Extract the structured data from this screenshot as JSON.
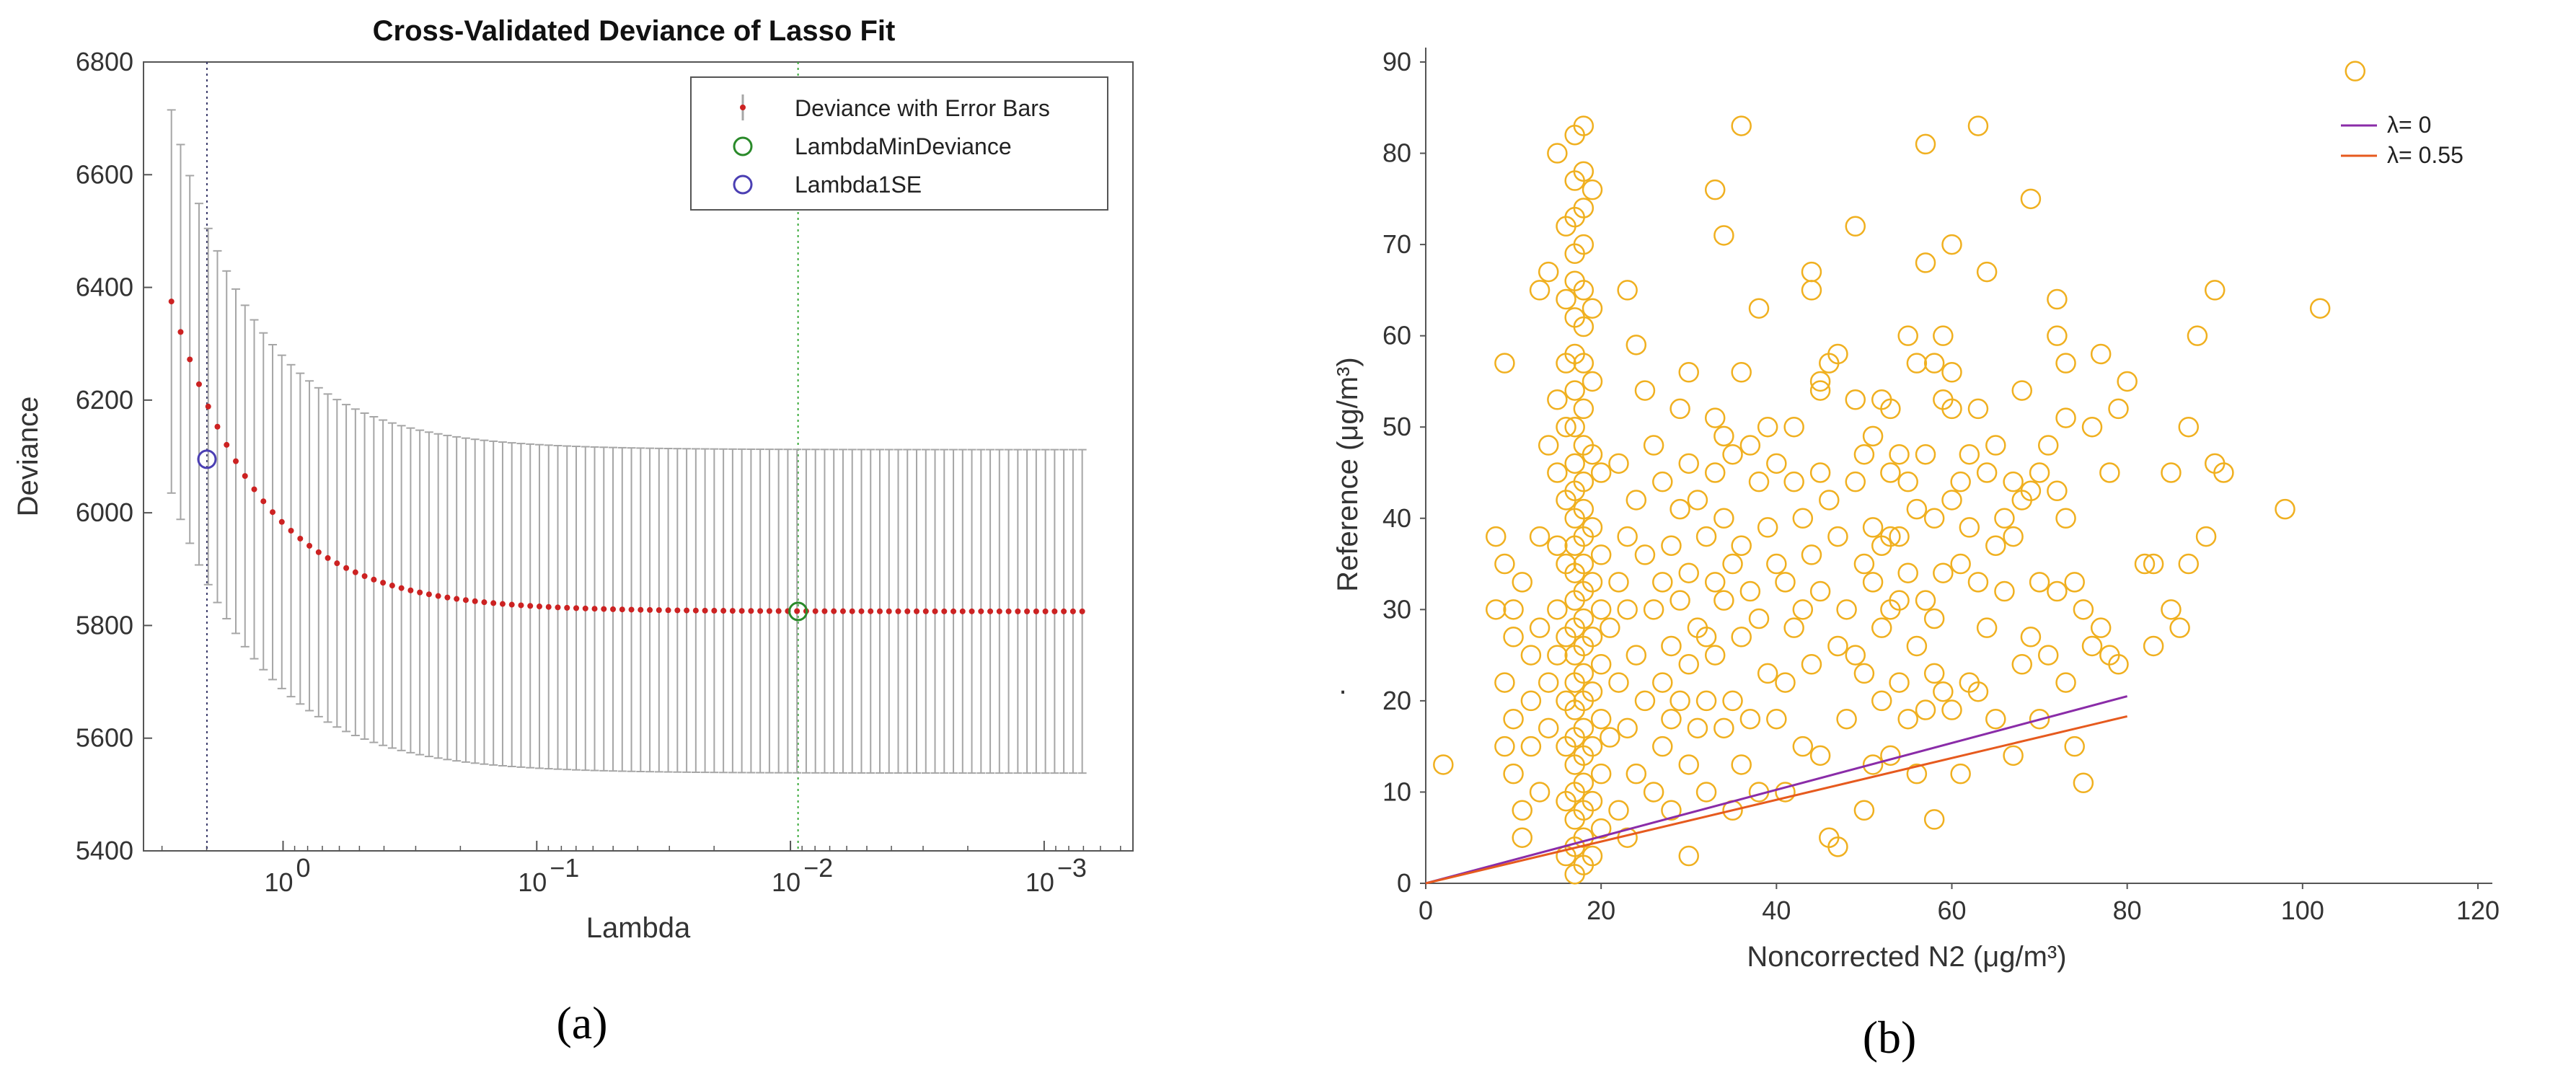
{
  "colors": {
    "errorbar": "#a6a6a6",
    "deviance_marker": "#cc2222",
    "min_marker": "#2a8a2a",
    "se_marker": "#4b3fb3",
    "scatter": "#f0b020",
    "line_lambda0": "#8a2ca8",
    "line_lambda055": "#e65a1e",
    "axis": "#555555"
  },
  "chart_data": [
    {
      "type": "line",
      "panel_label": "(a)",
      "title": "Cross-Validated Deviance of Lasso Fit",
      "xlabel": "Lambda",
      "ylabel": "Deviance",
      "xscale": "log",
      "x_reversed": true,
      "xlim_log10": [
        0.55,
        -3.35
      ],
      "ylim": [
        5400,
        6800
      ],
      "y_ticks": [
        5400,
        5600,
        5800,
        6000,
        6200,
        6400,
        6600,
        6800
      ],
      "x_ticks": [
        {
          "log": 0,
          "base": "10",
          "exp": "0"
        },
        {
          "log": -1,
          "base": "10",
          "exp": "−1"
        },
        {
          "log": -2,
          "base": "10",
          "exp": "−2"
        },
        {
          "log": -3,
          "base": "10",
          "exp": "−3"
        }
      ],
      "series": {
        "name": "Deviance with Error Bars",
        "lambda_log10_start": 0.44,
        "lambda_log10_end": -3.15,
        "n_points": 100,
        "deviance_min": 5825,
        "deviance_start": 6375,
        "decay": 0.115,
        "error_half_width": 287,
        "error_half_width_start": 340
      },
      "lambda_min_deviance": {
        "name": "LambdaMinDeviance",
        "log10_lambda": -2.03,
        "deviance": 5825
      },
      "lambda_1se": {
        "name": "Lambda1SE",
        "log10_lambda": 0.3,
        "deviance": 6095
      },
      "legend": [
        "Deviance with Error Bars",
        "LambdaMinDeviance",
        "Lambda1SE"
      ],
      "legend_position": "top-right"
    },
    {
      "type": "scatter",
      "panel_label": "(b)",
      "xlabel": "Noncorrected N2 (μg/m³)",
      "ylabel": "Reference (μg/m³)",
      "ylabel_extra": ".",
      "xlim": [
        0,
        120
      ],
      "ylim": [
        0,
        90
      ],
      "x_ticks": [
        0,
        20,
        40,
        60,
        80,
        100,
        120
      ],
      "y_ticks": [
        0,
        10,
        20,
        30,
        40,
        50,
        60,
        70,
        80,
        90
      ],
      "lines": [
        {
          "name": "λ= 0",
          "x": [
            0,
            80
          ],
          "y": [
            0,
            20.5
          ]
        },
        {
          "name": "λ= 0.55",
          "x": [
            0,
            80
          ],
          "y": [
            0,
            18.3
          ]
        }
      ],
      "legend_position": "top-right",
      "points": [
        [
          2,
          13
        ],
        [
          8,
          38
        ],
        [
          8,
          30
        ],
        [
          9,
          57
        ],
        [
          9,
          35
        ],
        [
          9,
          22
        ],
        [
          9,
          15
        ],
        [
          10,
          30
        ],
        [
          10,
          27
        ],
        [
          10,
          18
        ],
        [
          10,
          12
        ],
        [
          11,
          33
        ],
        [
          11,
          8
        ],
        [
          11,
          5
        ],
        [
          12,
          25
        ],
        [
          12,
          20
        ],
        [
          12,
          15
        ],
        [
          13,
          65
        ],
        [
          13,
          38
        ],
        [
          13,
          28
        ],
        [
          13,
          10
        ],
        [
          14,
          67
        ],
        [
          14,
          48
        ],
        [
          14,
          22
        ],
        [
          14,
          17
        ],
        [
          15,
          80
        ],
        [
          15,
          53
        ],
        [
          15,
          45
        ],
        [
          15,
          37
        ],
        [
          15,
          30
        ],
        [
          15,
          25
        ],
        [
          16,
          72
        ],
        [
          16,
          64
        ],
        [
          16,
          57
        ],
        [
          16,
          50
        ],
        [
          16,
          42
        ],
        [
          16,
          35
        ],
        [
          16,
          27
        ],
        [
          16,
          20
        ],
        [
          16,
          15
        ],
        [
          16,
          9
        ],
        [
          16,
          3
        ],
        [
          17,
          82
        ],
        [
          17,
          77
        ],
        [
          17,
          73
        ],
        [
          17,
          69
        ],
        [
          17,
          66
        ],
        [
          17,
          62
        ],
        [
          17,
          58
        ],
        [
          17,
          54
        ],
        [
          17,
          50
        ],
        [
          17,
          46
        ],
        [
          17,
          43
        ],
        [
          17,
          40
        ],
        [
          17,
          37
        ],
        [
          17,
          34
        ],
        [
          17,
          31
        ],
        [
          17,
          28
        ],
        [
          17,
          25
        ],
        [
          17,
          22
        ],
        [
          17,
          19
        ],
        [
          17,
          16
        ],
        [
          17,
          13
        ],
        [
          17,
          10
        ],
        [
          17,
          7
        ],
        [
          17,
          4
        ],
        [
          17,
          1
        ],
        [
          18,
          83
        ],
        [
          18,
          78
        ],
        [
          18,
          74
        ],
        [
          18,
          70
        ],
        [
          18,
          65
        ],
        [
          18,
          61
        ],
        [
          18,
          57
        ],
        [
          18,
          52
        ],
        [
          18,
          48
        ],
        [
          18,
          44
        ],
        [
          18,
          41
        ],
        [
          18,
          38
        ],
        [
          18,
          35
        ],
        [
          18,
          32
        ],
        [
          18,
          29
        ],
        [
          18,
          26
        ],
        [
          18,
          23
        ],
        [
          18,
          20
        ],
        [
          18,
          17
        ],
        [
          18,
          14
        ],
        [
          18,
          11
        ],
        [
          18,
          8
        ],
        [
          18,
          5
        ],
        [
          18,
          2
        ],
        [
          19,
          76
        ],
        [
          19,
          63
        ],
        [
          19,
          55
        ],
        [
          19,
          47
        ],
        [
          19,
          39
        ],
        [
          19,
          33
        ],
        [
          19,
          27
        ],
        [
          19,
          21
        ],
        [
          19,
          15
        ],
        [
          19,
          9
        ],
        [
          19,
          3
        ],
        [
          20,
          45
        ],
        [
          20,
          36
        ],
        [
          20,
          30
        ],
        [
          20,
          24
        ],
        [
          20,
          18
        ],
        [
          20,
          12
        ],
        [
          20,
          6
        ],
        [
          21,
          28
        ],
        [
          21,
          16
        ],
        [
          22,
          46
        ],
        [
          22,
          33
        ],
        [
          22,
          22
        ],
        [
          22,
          8
        ],
        [
          23,
          65
        ],
        [
          23,
          38
        ],
        [
          23,
          30
        ],
        [
          23,
          17
        ],
        [
          23,
          5
        ],
        [
          24,
          59
        ],
        [
          24,
          42
        ],
        [
          24,
          25
        ],
        [
          24,
          12
        ],
        [
          25,
          54
        ],
        [
          25,
          36
        ],
        [
          25,
          20
        ],
        [
          26,
          48
        ],
        [
          26,
          30
        ],
        [
          26,
          10
        ],
        [
          27,
          44
        ],
        [
          27,
          33
        ],
        [
          27,
          22
        ],
        [
          27,
          15
        ],
        [
          28,
          37
        ],
        [
          28,
          26
        ],
        [
          28,
          18
        ],
        [
          28,
          8
        ],
        [
          29,
          52
        ],
        [
          29,
          41
        ],
        [
          29,
          31
        ],
        [
          29,
          20
        ],
        [
          30,
          56
        ],
        [
          30,
          46
        ],
        [
          30,
          34
        ],
        [
          30,
          24
        ],
        [
          30,
          13
        ],
        [
          30,
          3
        ],
        [
          31,
          42
        ],
        [
          31,
          28
        ],
        [
          31,
          17
        ],
        [
          32,
          38
        ],
        [
          32,
          27
        ],
        [
          32,
          20
        ],
        [
          32,
          10
        ],
        [
          33,
          76
        ],
        [
          33,
          51
        ],
        [
          33,
          45
        ],
        [
          33,
          33
        ],
        [
          33,
          25
        ],
        [
          34,
          71
        ],
        [
          34,
          49
        ],
        [
          34,
          40
        ],
        [
          34,
          31
        ],
        [
          34,
          17
        ],
        [
          35,
          47
        ],
        [
          35,
          35
        ],
        [
          35,
          20
        ],
        [
          35,
          8
        ],
        [
          36,
          83
        ],
        [
          36,
          56
        ],
        [
          36,
          37
        ],
        [
          36,
          27
        ],
        [
          36,
          13
        ],
        [
          37,
          48
        ],
        [
          37,
          32
        ],
        [
          37,
          18
        ],
        [
          38,
          63
        ],
        [
          38,
          44
        ],
        [
          38,
          29
        ],
        [
          38,
          10
        ],
        [
          39,
          50
        ],
        [
          39,
          39
        ],
        [
          39,
          23
        ],
        [
          40,
          46
        ],
        [
          40,
          35
        ],
        [
          40,
          18
        ],
        [
          41,
          33
        ],
        [
          41,
          22
        ],
        [
          41,
          10
        ],
        [
          42,
          50
        ],
        [
          42,
          44
        ],
        [
          42,
          28
        ],
        [
          43,
          40
        ],
        [
          43,
          30
        ],
        [
          43,
          15
        ],
        [
          44,
          67
        ],
        [
          44,
          65
        ],
        [
          44,
          36
        ],
        [
          44,
          24
        ],
        [
          45,
          55
        ],
        [
          45,
          54
        ],
        [
          45,
          45
        ],
        [
          45,
          32
        ],
        [
          45,
          14
        ],
        [
          46,
          57
        ],
        [
          46,
          42
        ],
        [
          46,
          5
        ],
        [
          47,
          58
        ],
        [
          47,
          38
        ],
        [
          47,
          26
        ],
        [
          47,
          4
        ],
        [
          48,
          30
        ],
        [
          48,
          18
        ],
        [
          49,
          72
        ],
        [
          49,
          53
        ],
        [
          49,
          44
        ],
        [
          49,
          25
        ],
        [
          50,
          47
        ],
        [
          50,
          35
        ],
        [
          50,
          23
        ],
        [
          50,
          8
        ],
        [
          51,
          49
        ],
        [
          51,
          39
        ],
        [
          51,
          33
        ],
        [
          51,
          13
        ],
        [
          52,
          53
        ],
        [
          52,
          37
        ],
        [
          52,
          28
        ],
        [
          52,
          20
        ],
        [
          53,
          52
        ],
        [
          53,
          45
        ],
        [
          53,
          38
        ],
        [
          53,
          30
        ],
        [
          53,
          14
        ],
        [
          54,
          47
        ],
        [
          54,
          38
        ],
        [
          54,
          31
        ],
        [
          54,
          22
        ],
        [
          55,
          60
        ],
        [
          55,
          44
        ],
        [
          55,
          34
        ],
        [
          55,
          18
        ],
        [
          56,
          57
        ],
        [
          56,
          41
        ],
        [
          56,
          26
        ],
        [
          56,
          12
        ],
        [
          57,
          68
        ],
        [
          57,
          81
        ],
        [
          57,
          47
        ],
        [
          57,
          31
        ],
        [
          57,
          19
        ],
        [
          58,
          57
        ],
        [
          58,
          40
        ],
        [
          58,
          29
        ],
        [
          58,
          23
        ],
        [
          58,
          7
        ],
        [
          59,
          60
        ],
        [
          59,
          53
        ],
        [
          59,
          34
        ],
        [
          59,
          21
        ],
        [
          60,
          70
        ],
        [
          60,
          56
        ],
        [
          60,
          52
        ],
        [
          60,
          42
        ],
        [
          60,
          19
        ],
        [
          61,
          44
        ],
        [
          61,
          35
        ],
        [
          61,
          12
        ],
        [
          62,
          47
        ],
        [
          62,
          39
        ],
        [
          62,
          22
        ],
        [
          63,
          83
        ],
        [
          63,
          52
        ],
        [
          63,
          33
        ],
        [
          63,
          21
        ],
        [
          64,
          67
        ],
        [
          64,
          45
        ],
        [
          64,
          28
        ],
        [
          65,
          48
        ],
        [
          65,
          37
        ],
        [
          65,
          18
        ],
        [
          66,
          40
        ],
        [
          66,
          32
        ],
        [
          67,
          44
        ],
        [
          67,
          38
        ],
        [
          67,
          14
        ],
        [
          68,
          54
        ],
        [
          68,
          42
        ],
        [
          68,
          24
        ],
        [
          69,
          75
        ],
        [
          69,
          43
        ],
        [
          69,
          27
        ],
        [
          70,
          45
        ],
        [
          70,
          33
        ],
        [
          70,
          18
        ],
        [
          71,
          48
        ],
        [
          71,
          25
        ],
        [
          72,
          64
        ],
        [
          72,
          60
        ],
        [
          72,
          43
        ],
        [
          72,
          32
        ],
        [
          73,
          57
        ],
        [
          73,
          51
        ],
        [
          73,
          40
        ],
        [
          73,
          22
        ],
        [
          74,
          33
        ],
        [
          74,
          15
        ],
        [
          75,
          30
        ],
        [
          75,
          11
        ],
        [
          76,
          50
        ],
        [
          76,
          26
        ],
        [
          77,
          58
        ],
        [
          77,
          28
        ],
        [
          78,
          45
        ],
        [
          78,
          25
        ],
        [
          79,
          52
        ],
        [
          79,
          24
        ],
        [
          80,
          55
        ],
        [
          82,
          35
        ],
        [
          83,
          35
        ],
        [
          83,
          26
        ],
        [
          85,
          30
        ],
        [
          85,
          45
        ],
        [
          86,
          28
        ],
        [
          87,
          50
        ],
        [
          87,
          35
        ],
        [
          88,
          60
        ],
        [
          89,
          38
        ],
        [
          90,
          46
        ],
        [
          90,
          65
        ],
        [
          91,
          45
        ],
        [
          98,
          41
        ],
        [
          102,
          63
        ],
        [
          106,
          89
        ]
      ]
    }
  ]
}
